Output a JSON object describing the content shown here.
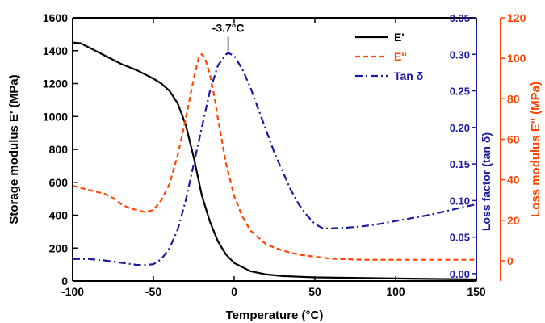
{
  "chart_data": {
    "type": "line",
    "xlabel": "Temperature (°C)",
    "xlim": [
      -100,
      150
    ],
    "x_ticks": [
      "-100",
      "-50",
      "0",
      "50",
      "100",
      "150"
    ],
    "y_left": {
      "label": "Storage modulus E' (MPa)",
      "ylim": [
        0,
        1600
      ],
      "ticks": [
        "0",
        "200",
        "400",
        "600",
        "800",
        "1000",
        "1200",
        "1400",
        "1600"
      ],
      "color": "#000000"
    },
    "y_right1": {
      "label": "Loss factor (tan δ)",
      "ylim": [
        -0.01,
        0.35
      ],
      "ticks": [
        "0.00",
        "0.05",
        "0.10",
        "0.15",
        "0.20",
        "0.25",
        "0.30",
        "0.35"
      ],
      "color": "#1a1aa0"
    },
    "y_right2": {
      "label": "Loss modulus E'' (MPa)",
      "ylim": [
        -10,
        120
      ],
      "ticks": [
        "0",
        "20",
        "40",
        "60",
        "80",
        "100",
        "120"
      ],
      "color": "#ff4500"
    },
    "annotation": "-3.7°C",
    "legend_position": "top-right",
    "grid": false,
    "series": [
      {
        "name": "E'",
        "axis": "left",
        "color": "#000000",
        "style": "solid",
        "x": [
          -100,
          -95,
          -90,
          -80,
          -70,
          -60,
          -50,
          -45,
          -40,
          -35,
          -30,
          -25,
          -20,
          -15,
          -10,
          -5,
          0,
          10,
          20,
          30,
          50,
          100,
          150
        ],
        "y": [
          1450,
          1445,
          1420,
          1370,
          1320,
          1280,
          1230,
          1200,
          1155,
          1080,
          950,
          750,
          520,
          360,
          240,
          160,
          110,
          60,
          40,
          30,
          22,
          15,
          10
        ]
      },
      {
        "name": "E''",
        "axis": "right2",
        "color": "#ff4500",
        "style": "dash",
        "x": [
          -100,
          -95,
          -90,
          -85,
          -80,
          -75,
          -70,
          -65,
          -60,
          -55,
          -50,
          -45,
          -40,
          -35,
          -30,
          -25,
          -22,
          -20,
          -18,
          -15,
          -12,
          -10,
          -5,
          0,
          5,
          10,
          20,
          30,
          40,
          50,
          60,
          80,
          100,
          150
        ],
        "y": [
          37,
          36,
          35,
          34,
          33,
          31,
          28,
          26,
          25,
          24,
          25,
          30,
          38,
          52,
          70,
          90,
          100,
          102,
          100,
          92,
          80,
          70,
          48,
          32,
          22,
          15,
          8,
          5,
          3,
          2,
          1,
          0.5,
          0.5,
          0.5
        ]
      },
      {
        "name": "Tan δ",
        "axis": "right1",
        "color": "#1a1aa0",
        "style": "dashdot",
        "x": [
          -100,
          -90,
          -80,
          -70,
          -60,
          -55,
          -50,
          -45,
          -40,
          -35,
          -30,
          -25,
          -20,
          -15,
          -10,
          -5,
          -3.7,
          0,
          5,
          10,
          15,
          20,
          25,
          30,
          35,
          40,
          45,
          50,
          55,
          60,
          70,
          80,
          90,
          100,
          110,
          120,
          130,
          140,
          150
        ],
        "y": [
          0.02,
          0.02,
          0.018,
          0.015,
          0.012,
          0.012,
          0.013,
          0.02,
          0.035,
          0.06,
          0.1,
          0.15,
          0.2,
          0.25,
          0.285,
          0.3,
          0.302,
          0.298,
          0.28,
          0.255,
          0.225,
          0.195,
          0.165,
          0.14,
          0.115,
          0.095,
          0.08,
          0.068,
          0.062,
          0.062,
          0.063,
          0.065,
          0.068,
          0.072,
          0.076,
          0.08,
          0.085,
          0.09,
          0.095
        ]
      }
    ]
  }
}
